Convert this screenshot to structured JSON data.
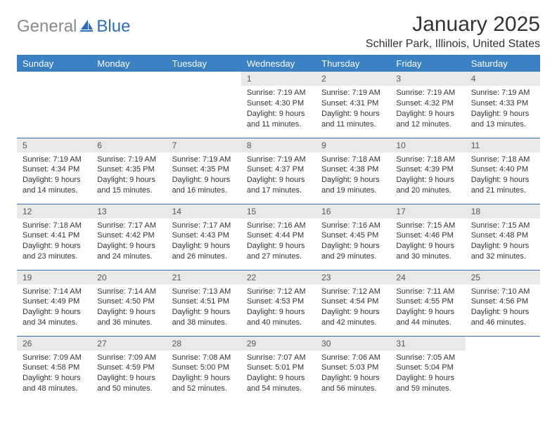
{
  "branding": {
    "word1": "General",
    "word2": "Blue",
    "gray_color": "#898a8c",
    "blue_color": "#2f6eb5",
    "icon_color": "#2f6eb5"
  },
  "title": "January 2025",
  "location": "Schiller Park, Illinois, United States",
  "styling": {
    "header_bg": "#3a81c3",
    "header_fg": "#ffffff",
    "daynum_bg": "#e9e9e9",
    "daynum_fg": "#555555",
    "cell_border": "#3a6fa8",
    "body_font_size": 11,
    "header_font_size": 13,
    "title_font_size": 30,
    "location_font_size": 16,
    "page_bg": "#ffffff",
    "columns": 7
  },
  "day_headers": [
    "Sunday",
    "Monday",
    "Tuesday",
    "Wednesday",
    "Thursday",
    "Friday",
    "Saturday"
  ],
  "weeks": [
    [
      {
        "num": "",
        "lines": []
      },
      {
        "num": "",
        "lines": []
      },
      {
        "num": "",
        "lines": []
      },
      {
        "num": "1",
        "lines": [
          "Sunrise: 7:19 AM",
          "Sunset: 4:30 PM",
          "Daylight: 9 hours",
          "and 11 minutes."
        ]
      },
      {
        "num": "2",
        "lines": [
          "Sunrise: 7:19 AM",
          "Sunset: 4:31 PM",
          "Daylight: 9 hours",
          "and 11 minutes."
        ]
      },
      {
        "num": "3",
        "lines": [
          "Sunrise: 7:19 AM",
          "Sunset: 4:32 PM",
          "Daylight: 9 hours",
          "and 12 minutes."
        ]
      },
      {
        "num": "4",
        "lines": [
          "Sunrise: 7:19 AM",
          "Sunset: 4:33 PM",
          "Daylight: 9 hours",
          "and 13 minutes."
        ]
      }
    ],
    [
      {
        "num": "5",
        "lines": [
          "Sunrise: 7:19 AM",
          "Sunset: 4:34 PM",
          "Daylight: 9 hours",
          "and 14 minutes."
        ]
      },
      {
        "num": "6",
        "lines": [
          "Sunrise: 7:19 AM",
          "Sunset: 4:35 PM",
          "Daylight: 9 hours",
          "and 15 minutes."
        ]
      },
      {
        "num": "7",
        "lines": [
          "Sunrise: 7:19 AM",
          "Sunset: 4:35 PM",
          "Daylight: 9 hours",
          "and 16 minutes."
        ]
      },
      {
        "num": "8",
        "lines": [
          "Sunrise: 7:19 AM",
          "Sunset: 4:37 PM",
          "Daylight: 9 hours",
          "and 17 minutes."
        ]
      },
      {
        "num": "9",
        "lines": [
          "Sunrise: 7:18 AM",
          "Sunset: 4:38 PM",
          "Daylight: 9 hours",
          "and 19 minutes."
        ]
      },
      {
        "num": "10",
        "lines": [
          "Sunrise: 7:18 AM",
          "Sunset: 4:39 PM",
          "Daylight: 9 hours",
          "and 20 minutes."
        ]
      },
      {
        "num": "11",
        "lines": [
          "Sunrise: 7:18 AM",
          "Sunset: 4:40 PM",
          "Daylight: 9 hours",
          "and 21 minutes."
        ]
      }
    ],
    [
      {
        "num": "12",
        "lines": [
          "Sunrise: 7:18 AM",
          "Sunset: 4:41 PM",
          "Daylight: 9 hours",
          "and 23 minutes."
        ]
      },
      {
        "num": "13",
        "lines": [
          "Sunrise: 7:17 AM",
          "Sunset: 4:42 PM",
          "Daylight: 9 hours",
          "and 24 minutes."
        ]
      },
      {
        "num": "14",
        "lines": [
          "Sunrise: 7:17 AM",
          "Sunset: 4:43 PM",
          "Daylight: 9 hours",
          "and 26 minutes."
        ]
      },
      {
        "num": "15",
        "lines": [
          "Sunrise: 7:16 AM",
          "Sunset: 4:44 PM",
          "Daylight: 9 hours",
          "and 27 minutes."
        ]
      },
      {
        "num": "16",
        "lines": [
          "Sunrise: 7:16 AM",
          "Sunset: 4:45 PM",
          "Daylight: 9 hours",
          "and 29 minutes."
        ]
      },
      {
        "num": "17",
        "lines": [
          "Sunrise: 7:15 AM",
          "Sunset: 4:46 PM",
          "Daylight: 9 hours",
          "and 30 minutes."
        ]
      },
      {
        "num": "18",
        "lines": [
          "Sunrise: 7:15 AM",
          "Sunset: 4:48 PM",
          "Daylight: 9 hours",
          "and 32 minutes."
        ]
      }
    ],
    [
      {
        "num": "19",
        "lines": [
          "Sunrise: 7:14 AM",
          "Sunset: 4:49 PM",
          "Daylight: 9 hours",
          "and 34 minutes."
        ]
      },
      {
        "num": "20",
        "lines": [
          "Sunrise: 7:14 AM",
          "Sunset: 4:50 PM",
          "Daylight: 9 hours",
          "and 36 minutes."
        ]
      },
      {
        "num": "21",
        "lines": [
          "Sunrise: 7:13 AM",
          "Sunset: 4:51 PM",
          "Daylight: 9 hours",
          "and 38 minutes."
        ]
      },
      {
        "num": "22",
        "lines": [
          "Sunrise: 7:12 AM",
          "Sunset: 4:53 PM",
          "Daylight: 9 hours",
          "and 40 minutes."
        ]
      },
      {
        "num": "23",
        "lines": [
          "Sunrise: 7:12 AM",
          "Sunset: 4:54 PM",
          "Daylight: 9 hours",
          "and 42 minutes."
        ]
      },
      {
        "num": "24",
        "lines": [
          "Sunrise: 7:11 AM",
          "Sunset: 4:55 PM",
          "Daylight: 9 hours",
          "and 44 minutes."
        ]
      },
      {
        "num": "25",
        "lines": [
          "Sunrise: 7:10 AM",
          "Sunset: 4:56 PM",
          "Daylight: 9 hours",
          "and 46 minutes."
        ]
      }
    ],
    [
      {
        "num": "26",
        "lines": [
          "Sunrise: 7:09 AM",
          "Sunset: 4:58 PM",
          "Daylight: 9 hours",
          "and 48 minutes."
        ]
      },
      {
        "num": "27",
        "lines": [
          "Sunrise: 7:09 AM",
          "Sunset: 4:59 PM",
          "Daylight: 9 hours",
          "and 50 minutes."
        ]
      },
      {
        "num": "28",
        "lines": [
          "Sunrise: 7:08 AM",
          "Sunset: 5:00 PM",
          "Daylight: 9 hours",
          "and 52 minutes."
        ]
      },
      {
        "num": "29",
        "lines": [
          "Sunrise: 7:07 AM",
          "Sunset: 5:01 PM",
          "Daylight: 9 hours",
          "and 54 minutes."
        ]
      },
      {
        "num": "30",
        "lines": [
          "Sunrise: 7:06 AM",
          "Sunset: 5:03 PM",
          "Daylight: 9 hours",
          "and 56 minutes."
        ]
      },
      {
        "num": "31",
        "lines": [
          "Sunrise: 7:05 AM",
          "Sunset: 5:04 PM",
          "Daylight: 9 hours",
          "and 59 minutes."
        ]
      },
      {
        "num": "",
        "lines": []
      }
    ]
  ]
}
